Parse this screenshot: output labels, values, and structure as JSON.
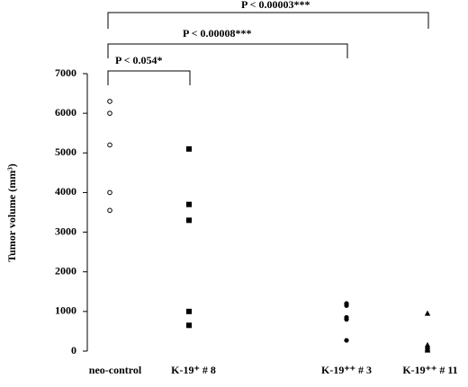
{
  "chart_data": {
    "type": "dot",
    "y_label": "Tumor volume (mm³)",
    "categories": [
      "neo-control",
      "K-19⁺ # 8",
      "K-19⁺⁺ # 3",
      "K-19⁺⁺ # 11"
    ],
    "values": [
      [
        6300,
        6000,
        5200,
        4000,
        3550
      ],
      [
        5100,
        3700,
        3300,
        1000,
        650
      ],
      [
        1200,
        1150,
        850,
        800,
        270
      ],
      [
        950,
        150,
        100,
        50,
        20
      ]
    ],
    "markers": [
      "circle-open",
      "square",
      "circle",
      "triangle"
    ],
    "color": "#000000",
    "ylim": [
      0,
      7000
    ],
    "yticks": [
      0,
      1000,
      2000,
      3000,
      4000,
      5000,
      6000,
      7000
    ],
    "annotations": [
      "P < 0.054*",
      "P <  0.00008***",
      "P <  0.00003***"
    ]
  }
}
